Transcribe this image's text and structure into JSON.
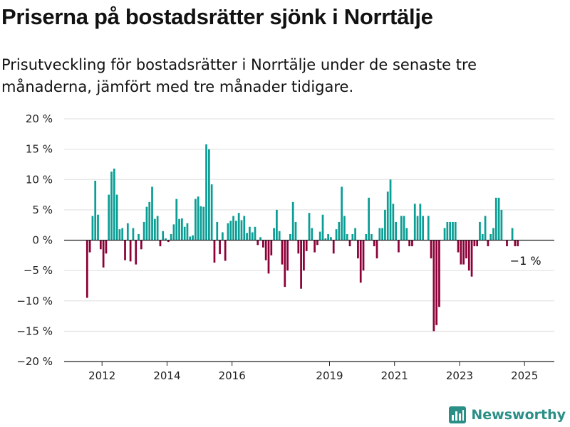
{
  "header": {
    "title": "Priserna på bostadsrätter sjönk i Norrtälje",
    "subtitle": "Prisutveckling för bostadsrätter i Norrtälje under de senaste tre månaderna, jämfört med tre månader tidigare."
  },
  "brand": {
    "name": "Newsworthy",
    "icon": "newsworthy-logo-icon"
  },
  "colors": {
    "positive": "#0a9e95",
    "negative": "#8c0038",
    "grid": "#dddddd",
    "axis": "#222222",
    "brand": "#2a8f86"
  },
  "chart_data": {
    "type": "bar",
    "ylabel": "",
    "xlabel": "",
    "ylim": [
      -20,
      20
    ],
    "y_ticks": [
      20,
      15,
      10,
      5,
      0,
      -5,
      -10,
      -15,
      -20
    ],
    "y_tick_labels": [
      "20 %",
      "15 %",
      "10 %",
      "5 %",
      "0 %",
      "−5 %",
      "−10 %",
      "−15 %",
      "−20 %"
    ],
    "x_ticks": [
      2012,
      2014,
      2016,
      2019,
      2021,
      2023,
      2025
    ],
    "x_tick_labels": [
      "2012",
      "2014",
      "2016",
      "2019",
      "2021",
      "2023",
      "2025"
    ],
    "x_range": [
      "2011-05",
      "2026-06"
    ],
    "grid": true,
    "annotations": [
      {
        "x": "2025-04",
        "y": -1,
        "text": "−1 %"
      }
    ],
    "series": [
      {
        "values": [
          [
            "2012-01",
            -9.5
          ],
          [
            "2012-02",
            -2
          ],
          [
            "2012-03",
            4
          ],
          [
            "2012-04",
            9.8
          ],
          [
            "2012-05",
            4.2
          ],
          [
            "2012-06",
            -1.5
          ],
          [
            "2012-07",
            -4.5
          ],
          [
            "2012-08",
            -2.2
          ],
          [
            "2012-09",
            7.5
          ],
          [
            "2012-10",
            11.3
          ],
          [
            "2012-11",
            11.8
          ],
          [
            "2012-12",
            7.5
          ],
          [
            "2013-01",
            1.8
          ],
          [
            "2013-02",
            2
          ],
          [
            "2013-03",
            -3.3
          ],
          [
            "2013-04",
            2.8
          ],
          [
            "2013-05",
            -3.5
          ],
          [
            "2013-06",
            2
          ],
          [
            "2013-07",
            -4
          ],
          [
            "2013-08",
            1
          ],
          [
            "2013-09",
            -1.5
          ],
          [
            "2013-10",
            3
          ],
          [
            "2013-11",
            5.5
          ],
          [
            "2013-12",
            6.3
          ],
          [
            "2014-01",
            8.8
          ],
          [
            "2014-02",
            3.5
          ],
          [
            "2014-03",
            4
          ],
          [
            "2014-04",
            -1
          ],
          [
            "2014-05",
            1.5
          ],
          [
            "2014-06",
            0.3
          ],
          [
            "2014-07",
            -0.3
          ],
          [
            "2014-08",
            1
          ],
          [
            "2014-09",
            2.6
          ],
          [
            "2014-10",
            6.8
          ],
          [
            "2014-11",
            3.5
          ],
          [
            "2014-12",
            3.6
          ],
          [
            "2015-01",
            2.2
          ],
          [
            "2015-02",
            2.8
          ],
          [
            "2015-03",
            0.6
          ],
          [
            "2015-04",
            0.8
          ],
          [
            "2015-05",
            6.8
          ],
          [
            "2015-06",
            7.2
          ],
          [
            "2015-07",
            5.6
          ],
          [
            "2015-08",
            5.5
          ],
          [
            "2015-09",
            15.8
          ],
          [
            "2015-10",
            15
          ],
          [
            "2015-11",
            9.2
          ],
          [
            "2015-12",
            -3.7
          ],
          [
            "2016-01",
            3
          ],
          [
            "2016-02",
            -2.3
          ],
          [
            "2016-03",
            1.3
          ],
          [
            "2016-04",
            -3.4
          ],
          [
            "2016-05",
            2.8
          ],
          [
            "2016-06",
            3.2
          ],
          [
            "2016-07",
            4
          ],
          [
            "2016-08",
            3.2
          ],
          [
            "2016-09",
            4.5
          ],
          [
            "2016-10",
            3.3
          ],
          [
            "2016-11",
            4
          ],
          [
            "2016-12",
            1.2
          ],
          [
            "2017-01",
            2.2
          ],
          [
            "2017-02",
            1.3
          ],
          [
            "2017-03",
            2.2
          ],
          [
            "2017-04",
            -0.8
          ],
          [
            "2017-05",
            0.5
          ],
          [
            "2017-06",
            -1.2
          ],
          [
            "2017-07",
            -3.3
          ],
          [
            "2017-08",
            -5.5
          ],
          [
            "2017-09",
            -2.5
          ],
          [
            "2017-10",
            2
          ],
          [
            "2017-11",
            5
          ],
          [
            "2017-12",
            1.5
          ],
          [
            "2018-01",
            -4
          ],
          [
            "2018-02",
            -7.7
          ],
          [
            "2018-03",
            -5
          ],
          [
            "2018-04",
            1
          ],
          [
            "2018-05",
            6.3
          ],
          [
            "2018-06",
            3
          ],
          [
            "2018-07",
            -2.2
          ],
          [
            "2018-08",
            -8
          ],
          [
            "2018-09",
            -5
          ],
          [
            "2018-10",
            -1.8
          ],
          [
            "2018-11",
            4.5
          ],
          [
            "2018-12",
            2
          ],
          [
            "2019-01",
            -2
          ],
          [
            "2019-02",
            -0.8
          ],
          [
            "2019-03",
            1.4
          ],
          [
            "2019-04",
            4.2
          ],
          [
            "2019-05",
            0.3
          ],
          [
            "2019-06",
            1
          ],
          [
            "2019-07",
            0.5
          ],
          [
            "2019-08",
            -2.2
          ],
          [
            "2019-09",
            1.8
          ],
          [
            "2019-10",
            3
          ],
          [
            "2019-11",
            8.8
          ],
          [
            "2019-12",
            4
          ],
          [
            "2020-01",
            1
          ],
          [
            "2020-02",
            -1
          ],
          [
            "2020-03",
            1
          ],
          [
            "2020-04",
            2
          ],
          [
            "2020-05",
            -3
          ],
          [
            "2020-06",
            -7
          ],
          [
            "2020-07",
            -5
          ],
          [
            "2020-08",
            1
          ],
          [
            "2020-09",
            7
          ],
          [
            "2020-10",
            1
          ],
          [
            "2020-11",
            -1
          ],
          [
            "2020-12",
            -3
          ],
          [
            "2021-01",
            2
          ],
          [
            "2021-02",
            2
          ],
          [
            "2021-03",
            5
          ],
          [
            "2021-04",
            8
          ],
          [
            "2021-05",
            10
          ],
          [
            "2021-06",
            6
          ],
          [
            "2021-07",
            3
          ],
          [
            "2021-08",
            -2
          ],
          [
            "2021-09",
            4
          ],
          [
            "2021-10",
            4
          ],
          [
            "2021-11",
            2
          ],
          [
            "2021-12",
            -1
          ],
          [
            "2022-01",
            -1
          ],
          [
            "2022-02",
            6
          ],
          [
            "2022-03",
            4
          ],
          [
            "2022-04",
            6
          ],
          [
            "2022-05",
            4
          ],
          [
            "2022-06",
            0
          ],
          [
            "2022-07",
            4
          ],
          [
            "2022-08",
            -3
          ],
          [
            "2022-09",
            -15
          ],
          [
            "2022-10",
            -14
          ],
          [
            "2022-11",
            -11
          ],
          [
            "2022-12",
            0
          ],
          [
            "2023-01",
            2
          ],
          [
            "2023-02",
            3
          ],
          [
            "2023-03",
            3
          ],
          [
            "2023-04",
            3
          ],
          [
            "2023-05",
            3
          ],
          [
            "2023-06",
            -2
          ],
          [
            "2023-07",
            -4
          ],
          [
            "2023-08",
            -4
          ],
          [
            "2023-09",
            -3
          ],
          [
            "2023-10",
            -5
          ],
          [
            "2023-11",
            -6
          ],
          [
            "2023-12",
            -1
          ],
          [
            "2024-01",
            -1
          ],
          [
            "2024-02",
            3
          ],
          [
            "2024-03",
            1
          ],
          [
            "2024-04",
            4
          ],
          [
            "2024-05",
            -1
          ],
          [
            "2024-06",
            1
          ],
          [
            "2024-07",
            2
          ],
          [
            "2024-08",
            7
          ],
          [
            "2024-09",
            7
          ],
          [
            "2024-10",
            5
          ],
          [
            "2024-11",
            0
          ],
          [
            "2024-12",
            -1
          ],
          [
            "2025-01",
            0
          ],
          [
            "2025-02",
            2
          ],
          [
            "2025-03",
            -1
          ],
          [
            "2025-04",
            -1
          ]
        ]
      }
    ]
  }
}
